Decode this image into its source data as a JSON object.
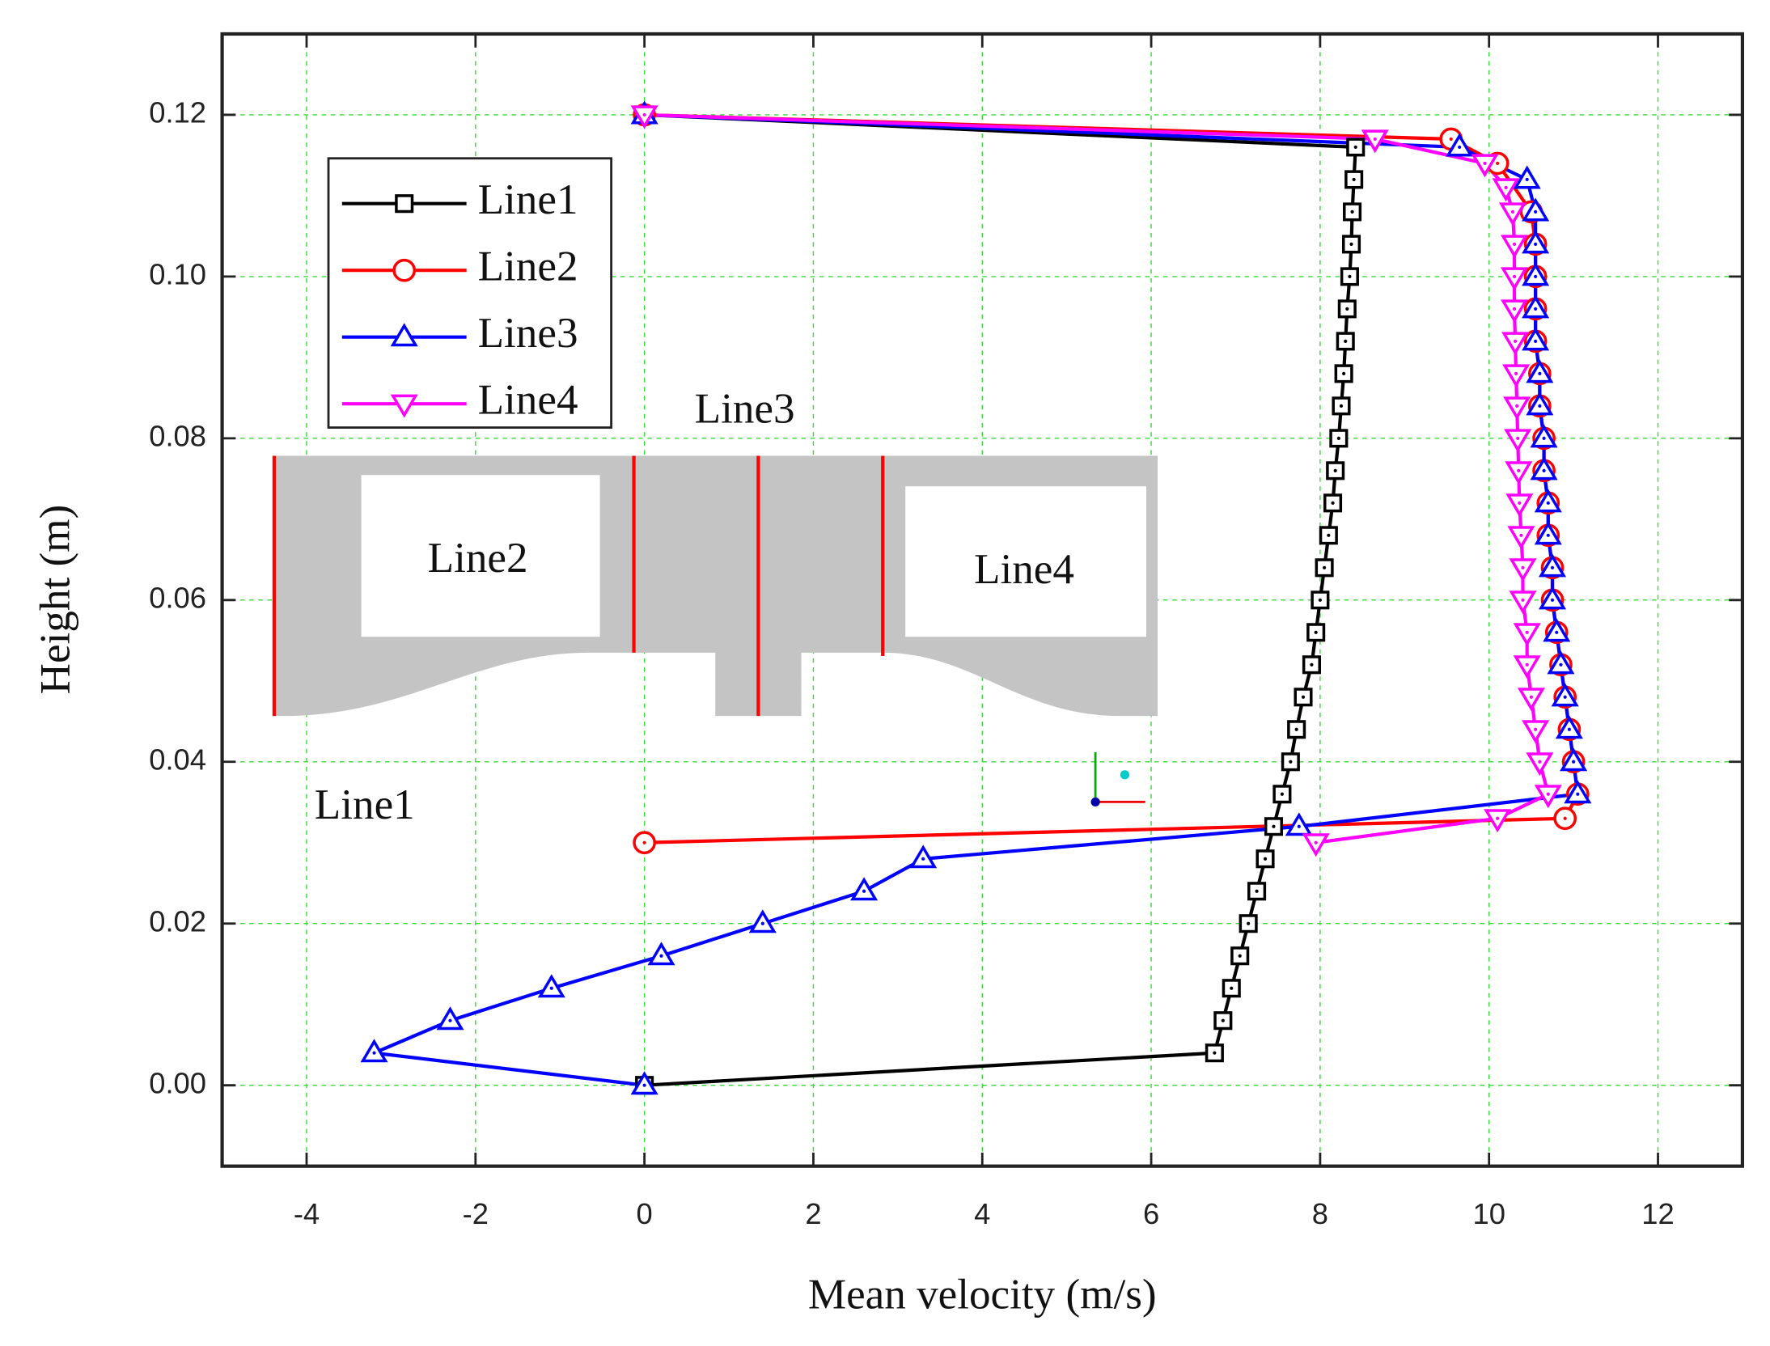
{
  "chart_data": {
    "type": "line",
    "xlabel": "Mean velocity (m/s)",
    "ylabel": "Height (m)",
    "xlim": [
      -5,
      13
    ],
    "ylim": [
      -0.01,
      0.13
    ],
    "xticks": [
      -4,
      -2,
      0,
      2,
      4,
      6,
      8,
      10,
      12
    ],
    "yticks": [
      {
        "value": 0,
        "label": "0.00"
      },
      {
        "value": 0.02,
        "label": "0.02"
      },
      {
        "value": 0.04,
        "label": "0.04"
      },
      {
        "value": 0.06,
        "label": "0.06"
      },
      {
        "value": 0.08,
        "label": "0.08"
      },
      {
        "value": 0.1,
        "label": "0.10"
      },
      {
        "value": 0.12,
        "label": "0.12"
      }
    ],
    "grid": true,
    "legend": "upper left",
    "inset_labels": [
      "Line3",
      "Line2",
      "Line4",
      "Line1"
    ],
    "series": [
      {
        "name": "Line1",
        "color": "#000000",
        "marker": "square",
        "x": [
          0,
          6.75,
          6.85,
          6.95,
          7.05,
          7.15,
          7.25,
          7.35,
          7.45,
          7.55,
          7.65,
          7.72,
          7.8,
          7.9,
          7.95,
          8.0,
          8.05,
          8.1,
          8.15,
          8.18,
          8.22,
          8.25,
          8.28,
          8.3,
          8.32,
          8.35,
          8.37,
          8.38,
          8.4,
          8.42,
          0
        ],
        "y": [
          0,
          0.004,
          0.008,
          0.012,
          0.016,
          0.02,
          0.024,
          0.028,
          0.032,
          0.036,
          0.04,
          0.044,
          0.048,
          0.052,
          0.056,
          0.06,
          0.064,
          0.068,
          0.072,
          0.076,
          0.08,
          0.084,
          0.088,
          0.092,
          0.096,
          0.1,
          0.104,
          0.108,
          0.112,
          0.116,
          0.12
        ]
      },
      {
        "name": "Line2",
        "color": "#ff0000",
        "marker": "circle",
        "x": [
          0,
          10.9,
          11.05,
          11.0,
          10.95,
          10.9,
          10.85,
          10.8,
          10.75,
          10.75,
          10.7,
          10.7,
          10.65,
          10.65,
          10.6,
          10.6,
          10.55,
          10.55,
          10.55,
          10.55,
          10.5,
          10.1,
          9.55,
          0
        ],
        "y": [
          0.03,
          0.033,
          0.036,
          0.04,
          0.044,
          0.048,
          0.052,
          0.056,
          0.06,
          0.064,
          0.068,
          0.072,
          0.076,
          0.08,
          0.084,
          0.088,
          0.092,
          0.096,
          0.1,
          0.104,
          0.108,
          0.114,
          0.117,
          0.12
        ]
      },
      {
        "name": "Line3",
        "color": "#0000ff",
        "marker": "triangle-up",
        "x": [
          0,
          -3.2,
          -2.3,
          -1.1,
          0.2,
          1.4,
          2.6,
          3.3,
          7.75,
          11.05,
          11.0,
          10.95,
          10.9,
          10.85,
          10.8,
          10.75,
          10.75,
          10.7,
          10.7,
          10.65,
          10.65,
          10.6,
          10.6,
          10.55,
          10.55,
          10.55,
          10.55,
          10.55,
          10.45,
          9.65,
          0
        ],
        "y": [
          0,
          0.004,
          0.008,
          0.012,
          0.016,
          0.02,
          0.024,
          0.028,
          0.032,
          0.036,
          0.04,
          0.044,
          0.048,
          0.052,
          0.056,
          0.06,
          0.064,
          0.068,
          0.072,
          0.076,
          0.08,
          0.084,
          0.088,
          0.092,
          0.096,
          0.1,
          0.104,
          0.108,
          0.112,
          0.116,
          0.12
        ]
      },
      {
        "name": "Line4",
        "color": "#ff00ff",
        "marker": "triangle-down",
        "x": [
          7.95,
          10.1,
          10.7,
          10.6,
          10.55,
          10.5,
          10.45,
          10.45,
          10.4,
          10.4,
          10.38,
          10.36,
          10.35,
          10.34,
          10.33,
          10.32,
          10.31,
          10.3,
          10.3,
          10.3,
          10.28,
          10.2,
          9.95,
          8.65,
          0
        ],
        "y": [
          0.03,
          0.033,
          0.036,
          0.04,
          0.044,
          0.048,
          0.052,
          0.056,
          0.06,
          0.064,
          0.068,
          0.072,
          0.076,
          0.08,
          0.084,
          0.088,
          0.092,
          0.096,
          0.1,
          0.104,
          0.108,
          0.111,
          0.114,
          0.117,
          0.12
        ]
      }
    ]
  }
}
